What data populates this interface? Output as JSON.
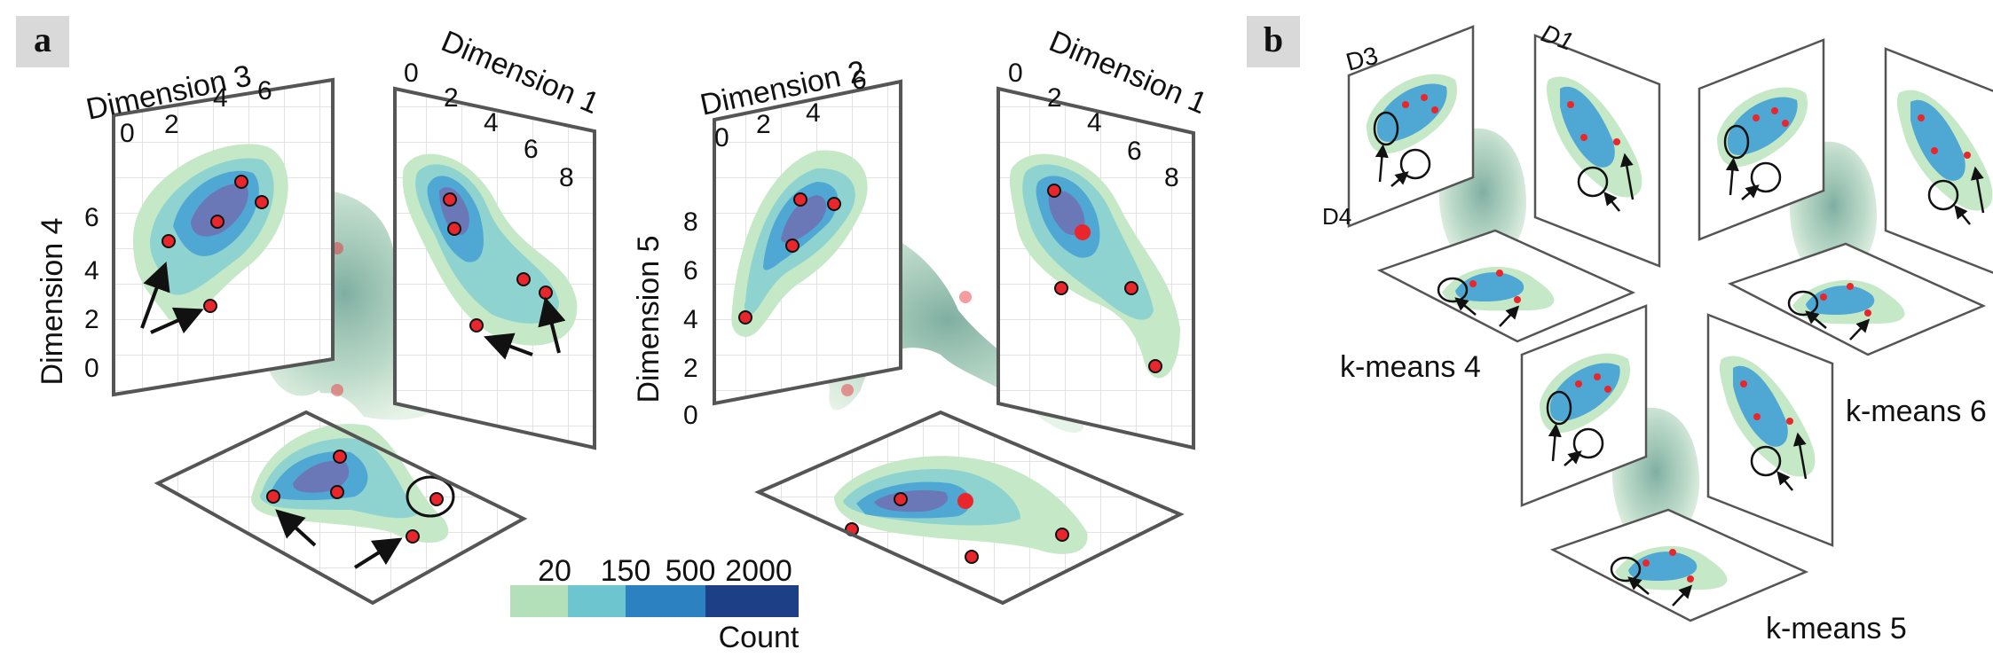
{
  "panel_a": {
    "tag": "a",
    "group1": {
      "axis_top_left": "Dimension 3",
      "ticks_top_left": [
        "0",
        "2",
        "4",
        "6"
      ],
      "axis_top_right": "Dimension 1",
      "ticks_top_right": [
        "0",
        "2",
        "4",
        "6",
        "8"
      ],
      "axis_left": "Dimension 4",
      "ticks_left": [
        "6",
        "4",
        "2",
        "0"
      ]
    },
    "group2": {
      "axis_top_left": "Dimension 2",
      "ticks_top_left": [
        "0",
        "2",
        "4",
        "6"
      ],
      "axis_top_right": "Dimension 1",
      "ticks_top_right": [
        "0",
        "2",
        "4",
        "6",
        "8"
      ],
      "axis_left": "Dimension 5",
      "ticks_left": [
        "8",
        "6",
        "4",
        "2",
        "0"
      ]
    },
    "colorbar": {
      "title": "Count",
      "ticks": [
        "20",
        "150",
        "500",
        "2000"
      ],
      "colors": [
        "#b3e0b8",
        "#6cc5cf",
        "#2c82c0",
        "#1c3f86"
      ]
    }
  },
  "panel_b": {
    "tag": "b",
    "labels": {
      "d1": "D1",
      "d3": "D3",
      "d4": "D4"
    },
    "groups": [
      "k-means 4",
      "k-means 6",
      "k-means 5"
    ]
  },
  "colors": {
    "contour_outer": "#c5e8c6",
    "contour_2": "#8fd3d0",
    "contour_3": "#4fa8d3",
    "contour_inner": "#6b78b8",
    "point": "#e8262c",
    "frame": "#555555",
    "grid": "#cccccc",
    "cloud": "#7fb0a0"
  }
}
